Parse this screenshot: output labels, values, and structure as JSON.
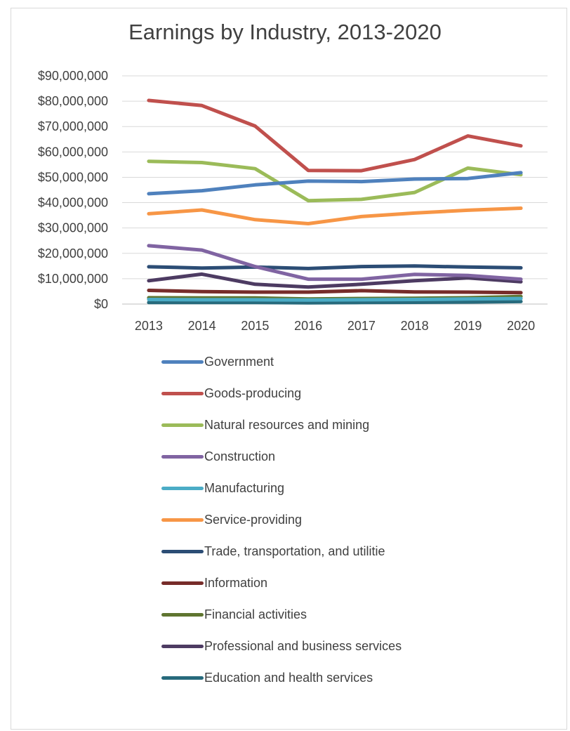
{
  "chart_data": {
    "type": "line",
    "title": "Earnings by Industry, 2013-2020",
    "xlabel": "",
    "ylabel": "",
    "categories": [
      "2013",
      "2014",
      "2015",
      "2016",
      "2017",
      "2018",
      "2019",
      "2020"
    ],
    "y_tick_labels": [
      "$0",
      "$10,000,000",
      "$20,000,000",
      "$30,000,000",
      "$40,000,000",
      "$50,000,000",
      "$60,000,000",
      "$70,000,000",
      "$80,000,000",
      "$90,000,000"
    ],
    "ylim": [
      0,
      90000000
    ],
    "grid": true,
    "legend_position": "bottom",
    "series": [
      {
        "name": "Government",
        "color": "#4f81bd",
        "values": [
          43500000,
          44700000,
          47000000,
          48500000,
          48300000,
          49300000,
          49500000,
          51800000
        ]
      },
      {
        "name": "Goods-producing",
        "color": "#c0504d",
        "values": [
          80300000,
          78300000,
          70200000,
          52700000,
          52600000,
          57000000,
          66300000,
          62400000
        ]
      },
      {
        "name": "Natural resources and mining",
        "color": "#9bbb59",
        "values": [
          56300000,
          55800000,
          53400000,
          40800000,
          41300000,
          44000000,
          53600000,
          51000000
        ]
      },
      {
        "name": "Construction",
        "color": "#8064a2",
        "values": [
          23000000,
          21300000,
          14800000,
          9800000,
          9800000,
          11700000,
          11300000,
          9800000
        ]
      },
      {
        "name": "Manufacturing",
        "color": "#4bacc6",
        "values": [
          1800000,
          1700000,
          1700000,
          1600000,
          1700000,
          1800000,
          2000000,
          2200000
        ]
      },
      {
        "name": "Service-providing",
        "color": "#f79646",
        "values": [
          35600000,
          37100000,
          33300000,
          31700000,
          34500000,
          35900000,
          37000000,
          37800000
        ]
      },
      {
        "name": "Trade, transportation, and utilitie",
        "color": "#2c4d75",
        "values": [
          14700000,
          14200000,
          14600000,
          14000000,
          14800000,
          15000000,
          14600000,
          14300000
        ]
      },
      {
        "name": "Information",
        "color": "#772c2a",
        "values": [
          5400000,
          4900000,
          4700000,
          4700000,
          5300000,
          4800000,
          4700000,
          4500000
        ]
      },
      {
        "name": "Financial activities",
        "color": "#5f7530",
        "values": [
          2500000,
          2400000,
          2400000,
          2000000,
          2200000,
          2300000,
          2500000,
          3000000
        ]
      },
      {
        "name": "Professional and business services",
        "color": "#4d3b62",
        "values": [
          9200000,
          11800000,
          7800000,
          6700000,
          7800000,
          9200000,
          10300000,
          8800000
        ]
      },
      {
        "name": "Education and health services",
        "color": "#276a7c",
        "values": [
          600000,
          600000,
          600000,
          500000,
          600000,
          700000,
          800000,
          1000000
        ]
      }
    ]
  }
}
